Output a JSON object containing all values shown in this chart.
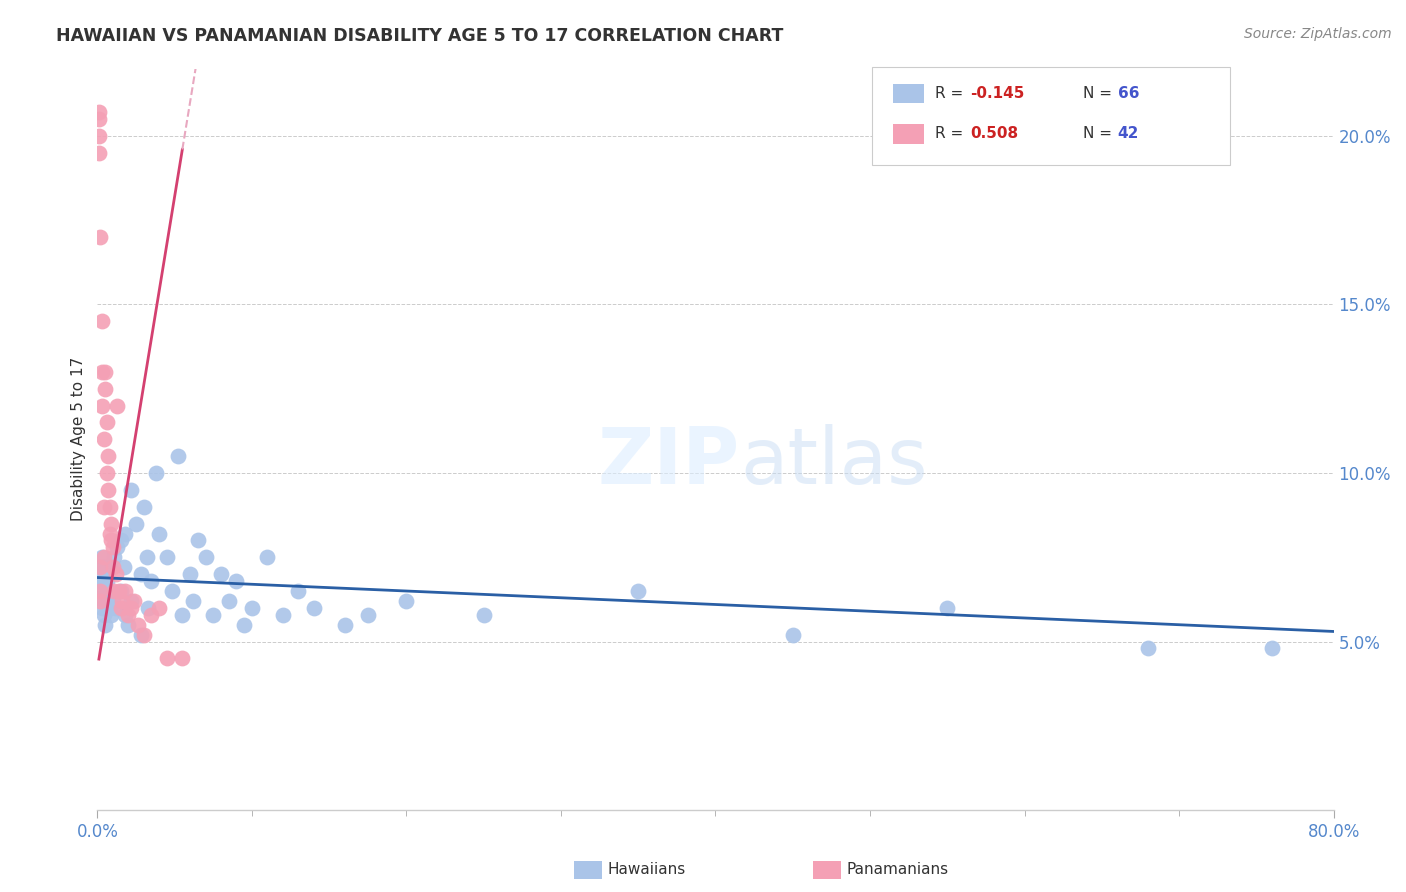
{
  "title": "HAWAIIAN VS PANAMANIAN DISABILITY AGE 5 TO 17 CORRELATION CHART",
  "source": "Source: ZipAtlas.com",
  "ylabel": "Disability Age 5 to 17",
  "xlim": [
    0.0,
    0.8
  ],
  "ylim": [
    0.0,
    0.22
  ],
  "xtick_positions": [
    0.0,
    0.8
  ],
  "xtick_labels": [
    "0.0%",
    "80.0%"
  ],
  "ytick_positions": [
    0.05,
    0.1,
    0.15,
    0.2
  ],
  "ytick_labels": [
    "5.0%",
    "10.0%",
    "15.0%",
    "20.0%"
  ],
  "grid_color": "#cccccc",
  "background_color": "#ffffff",
  "hawaiian_color": "#aac4e8",
  "panamanian_color": "#f4a0b5",
  "hawaiian_line_color": "#2a5fa5",
  "panamanian_line_color": "#d44070",
  "panamanian_line_dashed_color": "#e8a8c0",
  "legend_R_hawaiian": "R = -0.145",
  "legend_N_hawaiian": "N = 66",
  "legend_R_panamanian": "R = 0.508",
  "legend_N_panamanian": "N = 42",
  "watermark_zip": "ZIP",
  "watermark_atlas": "atlas",
  "tick_color": "#5588cc",
  "hawaiian_x": [
    0.001,
    0.002,
    0.002,
    0.003,
    0.003,
    0.003,
    0.003,
    0.004,
    0.004,
    0.005,
    0.005,
    0.005,
    0.006,
    0.006,
    0.007,
    0.008,
    0.008,
    0.009,
    0.01,
    0.011,
    0.012,
    0.013,
    0.015,
    0.015,
    0.017,
    0.018,
    0.018,
    0.02,
    0.022,
    0.022,
    0.025,
    0.028,
    0.028,
    0.03,
    0.032,
    0.033,
    0.035,
    0.038,
    0.04,
    0.045,
    0.048,
    0.052,
    0.055,
    0.06,
    0.062,
    0.065,
    0.07,
    0.075,
    0.08,
    0.085,
    0.09,
    0.095,
    0.1,
    0.11,
    0.12,
    0.13,
    0.14,
    0.16,
    0.175,
    0.2,
    0.25,
    0.35,
    0.45,
    0.55,
    0.68,
    0.76
  ],
  "hawaiian_y": [
    0.068,
    0.07,
    0.063,
    0.068,
    0.072,
    0.06,
    0.075,
    0.065,
    0.058,
    0.07,
    0.055,
    0.072,
    0.062,
    0.068,
    0.065,
    0.06,
    0.072,
    0.058,
    0.063,
    0.075,
    0.06,
    0.078,
    0.08,
    0.065,
    0.072,
    0.058,
    0.082,
    0.055,
    0.095,
    0.062,
    0.085,
    0.07,
    0.052,
    0.09,
    0.075,
    0.06,
    0.068,
    0.1,
    0.082,
    0.075,
    0.065,
    0.105,
    0.058,
    0.07,
    0.062,
    0.08,
    0.075,
    0.058,
    0.07,
    0.062,
    0.068,
    0.055,
    0.06,
    0.075,
    0.058,
    0.065,
    0.06,
    0.055,
    0.058,
    0.062,
    0.058,
    0.065,
    0.052,
    0.06,
    0.048,
    0.048
  ],
  "panamanian_x": [
    0.001,
    0.001,
    0.001,
    0.001,
    0.002,
    0.002,
    0.002,
    0.002,
    0.003,
    0.003,
    0.003,
    0.004,
    0.004,
    0.004,
    0.005,
    0.005,
    0.006,
    0.006,
    0.007,
    0.007,
    0.008,
    0.008,
    0.009,
    0.009,
    0.01,
    0.01,
    0.011,
    0.012,
    0.013,
    0.014,
    0.015,
    0.016,
    0.018,
    0.02,
    0.022,
    0.024,
    0.026,
    0.03,
    0.035,
    0.04,
    0.045,
    0.055
  ],
  "panamanian_y": [
    0.195,
    0.205,
    0.207,
    0.2,
    0.17,
    0.065,
    0.072,
    0.062,
    0.145,
    0.13,
    0.12,
    0.11,
    0.09,
    0.075,
    0.13,
    0.125,
    0.115,
    0.1,
    0.105,
    0.095,
    0.09,
    0.082,
    0.085,
    0.08,
    0.078,
    0.072,
    0.065,
    0.07,
    0.12,
    0.065,
    0.06,
    0.062,
    0.065,
    0.058,
    0.06,
    0.062,
    0.055,
    0.052,
    0.058,
    0.06,
    0.045,
    0.045
  ],
  "hawaiian_slope": -0.02,
  "hawaiian_intercept": 0.069,
  "panamanian_slope": 2.8,
  "panamanian_intercept": 0.042
}
